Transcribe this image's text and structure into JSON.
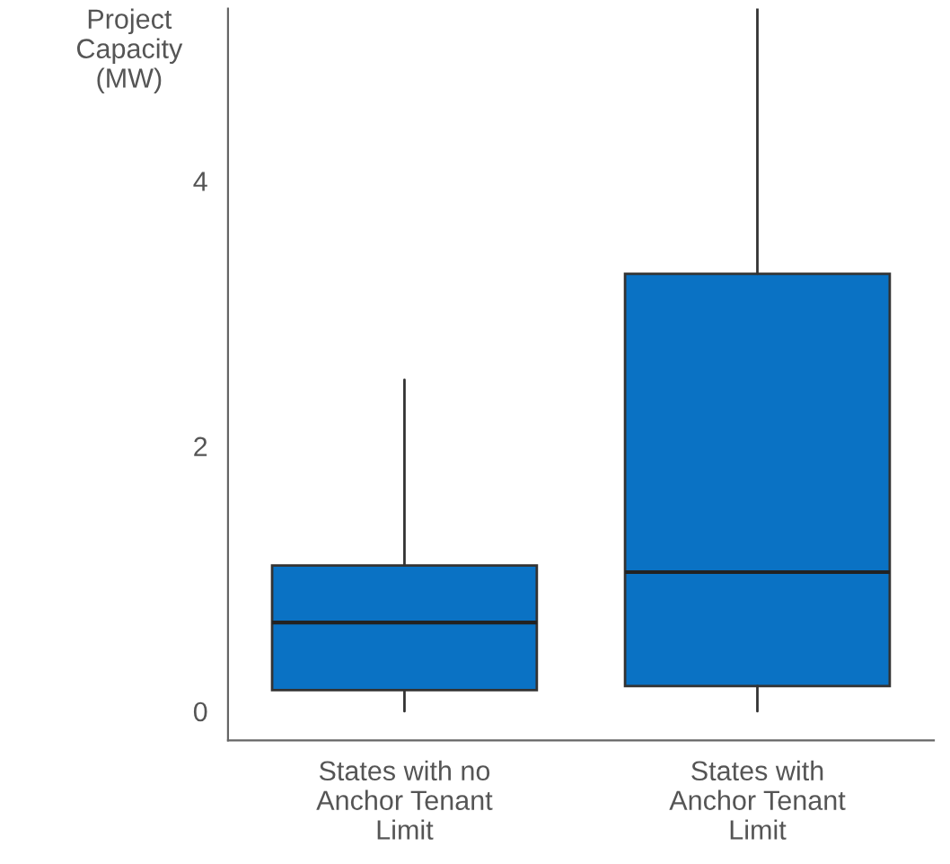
{
  "chart_data": {
    "type": "box",
    "ylabel": "Project\nCapacity\n(MW)",
    "categories": [
      "States with no\nAnchor Tenant\nLimit",
      "States with\nAnchor Tenant\nLimit"
    ],
    "boxes": [
      {
        "low": 0,
        "q1": 0.16,
        "median": 0.67,
        "q3": 1.1,
        "high": 2.5
      },
      {
        "low": 0,
        "q1": 0.19,
        "median": 1.05,
        "q3": 3.3,
        "high": 5.3
      }
    ],
    "color": "#0a72c4",
    "ylim": [
      -0.22,
      5.3
    ],
    "yticks": [
      0,
      2,
      4
    ],
    "grid": false,
    "legend": false
  }
}
